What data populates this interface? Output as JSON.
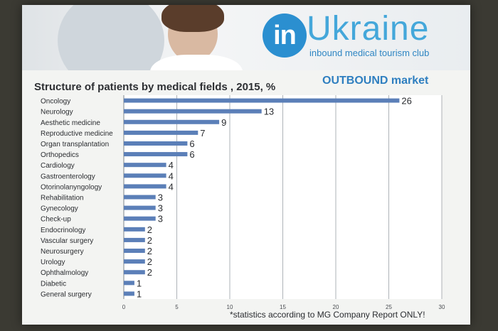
{
  "banner": {
    "logo_in": "in",
    "logo_word": "Ukraine",
    "logo_tagline": "inbound medical tourism club",
    "logo_color": "#2b8fd0"
  },
  "market_label": "OUTBOUND market",
  "footnote": "*statistics  according to MG Company Report ONLY!",
  "chart_data": {
    "type": "bar",
    "orientation": "horizontal",
    "title": "Structure of patients by medical fields , 2015, %",
    "xlabel": "",
    "ylabel": "",
    "xlim": [
      0,
      30
    ],
    "xticks": [
      0,
      5,
      10,
      15,
      20,
      25,
      30
    ],
    "grid": true,
    "bar_color": "#5b7fb8",
    "categories": [
      "Oncology",
      "Neurology",
      "Aesthetic medicine",
      "Reproductive medicine",
      "Organ transplantation",
      "Orthopedics",
      "Cardiology",
      "Gastroenterology",
      "Otorinolanyngology",
      "Rehabilitation",
      "Gynecology",
      "Check-up",
      "Endocrinology",
      "Vascular surgery",
      "Neurosurgery",
      "Urology",
      "Ophthalmology",
      "Diabetic",
      "General surgery"
    ],
    "values": [
      26,
      13,
      9,
      7,
      6,
      6,
      4,
      4,
      4,
      3,
      3,
      3,
      2,
      2,
      2,
      2,
      2,
      1,
      1
    ]
  }
}
